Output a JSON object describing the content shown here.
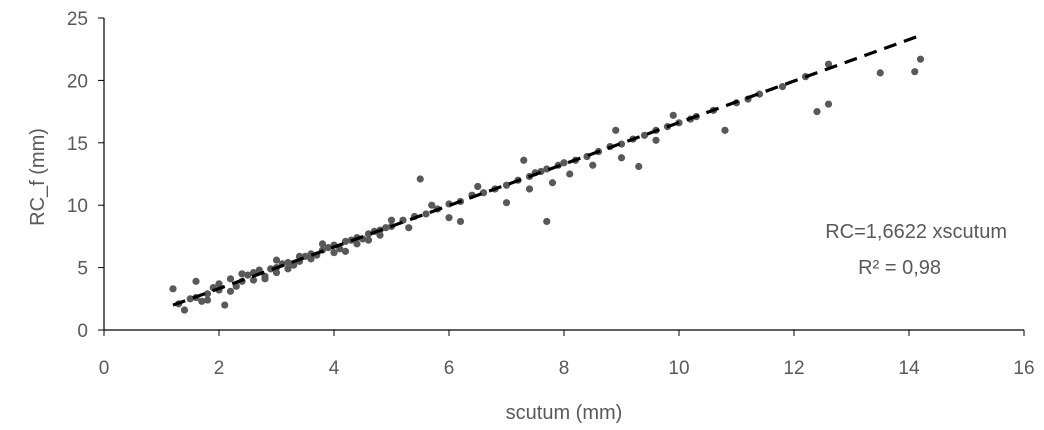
{
  "chart_data": {
    "type": "scatter",
    "xlabel": "scutum (mm)",
    "ylabel": "RC_f (mm)",
    "xlim": [
      0,
      16
    ],
    "ylim": [
      0,
      25
    ],
    "x_ticks": [
      "0",
      "2",
      "4",
      "6",
      "8",
      "10",
      "12",
      "14",
      "16"
    ],
    "y_ticks": [
      "0",
      "5",
      "10",
      "15",
      "20",
      "25"
    ],
    "x_tick_values": [
      0,
      2,
      4,
      6,
      8,
      10,
      12,
      14,
      16
    ],
    "y_tick_values": [
      0,
      5,
      10,
      15,
      20,
      25
    ],
    "grid": false,
    "legend": "none",
    "marker_color": "#595959",
    "trend_color": "#000000",
    "trendline": {
      "style": "dashed",
      "slope": 1.6622,
      "intercept": 0,
      "x_range": [
        1.2,
        14.2
      ]
    },
    "annotations": [
      "RC=1,6622 xscutum",
      "R² = 0,98"
    ],
    "points": [
      [
        1.2,
        3.3
      ],
      [
        1.3,
        2.1
      ],
      [
        1.4,
        1.6
      ],
      [
        1.5,
        2.5
      ],
      [
        1.6,
        3.9
      ],
      [
        1.7,
        2.3
      ],
      [
        1.8,
        2.9
      ],
      [
        1.9,
        3.4
      ],
      [
        2.0,
        3.2
      ],
      [
        2.1,
        2.0
      ],
      [
        2.2,
        4.1
      ],
      [
        2.3,
        3.5
      ],
      [
        2.4,
        3.9
      ],
      [
        2.5,
        4.4
      ],
      [
        2.6,
        4.0
      ],
      [
        2.7,
        4.8
      ],
      [
        2.8,
        4.3
      ],
      [
        2.9,
        4.9
      ],
      [
        3.0,
        5.0
      ],
      [
        3.1,
        5.3
      ],
      [
        3.2,
        5.4
      ],
      [
        3.3,
        5.2
      ],
      [
        3.4,
        5.5
      ],
      [
        3.5,
        5.9
      ],
      [
        3.6,
        6.1
      ],
      [
        3.7,
        6.0
      ],
      [
        3.8,
        6.4
      ],
      [
        3.9,
        6.6
      ],
      [
        4.0,
        6.8
      ],
      [
        4.1,
        6.5
      ],
      [
        4.2,
        7.1
      ],
      [
        4.3,
        7.2
      ],
      [
        4.4,
        7.4
      ],
      [
        4.5,
        7.3
      ],
      [
        4.6,
        7.7
      ],
      [
        4.7,
        7.9
      ],
      [
        4.8,
        8.0
      ],
      [
        4.9,
        8.2
      ],
      [
        5.0,
        8.3
      ],
      [
        5.2,
        8.8
      ],
      [
        5.4,
        9.1
      ],
      [
        5.5,
        12.1
      ],
      [
        5.6,
        9.3
      ],
      [
        5.8,
        9.7
      ],
      [
        6.0,
        10.1
      ],
      [
        6.2,
        10.3
      ],
      [
        6.4,
        10.8
      ],
      [
        6.6,
        11.0
      ],
      [
        6.8,
        11.3
      ],
      [
        7.0,
        11.6
      ],
      [
        7.2,
        12.0
      ],
      [
        7.4,
        12.3
      ],
      [
        7.5,
        12.6
      ],
      [
        7.6,
        12.7
      ],
      [
        7.7,
        12.9
      ],
      [
        7.8,
        11.8
      ],
      [
        7.9,
        13.2
      ],
      [
        8.0,
        13.4
      ],
      [
        8.2,
        13.6
      ],
      [
        8.4,
        13.9
      ],
      [
        8.6,
        14.3
      ],
      [
        8.8,
        14.7
      ],
      [
        9.0,
        14.9
      ],
      [
        9.2,
        15.3
      ],
      [
        9.4,
        15.6
      ],
      [
        9.6,
        16.0
      ],
      [
        9.8,
        16.3
      ],
      [
        10.0,
        16.6
      ],
      [
        10.3,
        17.1
      ],
      [
        10.6,
        17.6
      ],
      [
        11.0,
        18.2
      ],
      [
        11.4,
        18.9
      ],
      [
        11.8,
        19.5
      ],
      [
        12.2,
        20.3
      ],
      [
        12.4,
        17.5
      ],
      [
        12.6,
        21.3
      ],
      [
        12.6,
        18.1
      ],
      [
        13.5,
        20.6
      ],
      [
        14.1,
        20.7
      ],
      [
        14.2,
        21.7
      ],
      [
        1.6,
        2.6
      ],
      [
        1.8,
        2.4
      ],
      [
        2.0,
        3.7
      ],
      [
        2.2,
        3.1
      ],
      [
        2.4,
        4.5
      ],
      [
        2.6,
        4.6
      ],
      [
        2.8,
        4.1
      ],
      [
        3.0,
        4.6
      ],
      [
        3.0,
        5.6
      ],
      [
        3.2,
        4.9
      ],
      [
        3.4,
        5.9
      ],
      [
        3.6,
        5.7
      ],
      [
        3.8,
        6.9
      ],
      [
        4.0,
        6.2
      ],
      [
        4.2,
        6.3
      ],
      [
        4.4,
        6.9
      ],
      [
        4.6,
        7.2
      ],
      [
        4.8,
        7.6
      ],
      [
        5.0,
        8.8
      ],
      [
        5.3,
        8.2
      ],
      [
        5.7,
        10.0
      ],
      [
        6.0,
        9.0
      ],
      [
        6.2,
        8.7
      ],
      [
        6.5,
        11.5
      ],
      [
        7.0,
        10.2
      ],
      [
        7.3,
        13.6
      ],
      [
        7.4,
        11.3
      ],
      [
        7.7,
        8.7
      ],
      [
        8.1,
        12.5
      ],
      [
        8.5,
        13.2
      ],
      [
        8.9,
        16.0
      ],
      [
        9.0,
        13.8
      ],
      [
        9.3,
        13.1
      ],
      [
        9.6,
        15.2
      ],
      [
        9.9,
        17.2
      ],
      [
        10.2,
        16.9
      ],
      [
        10.8,
        16.0
      ],
      [
        11.2,
        18.5
      ]
    ]
  }
}
